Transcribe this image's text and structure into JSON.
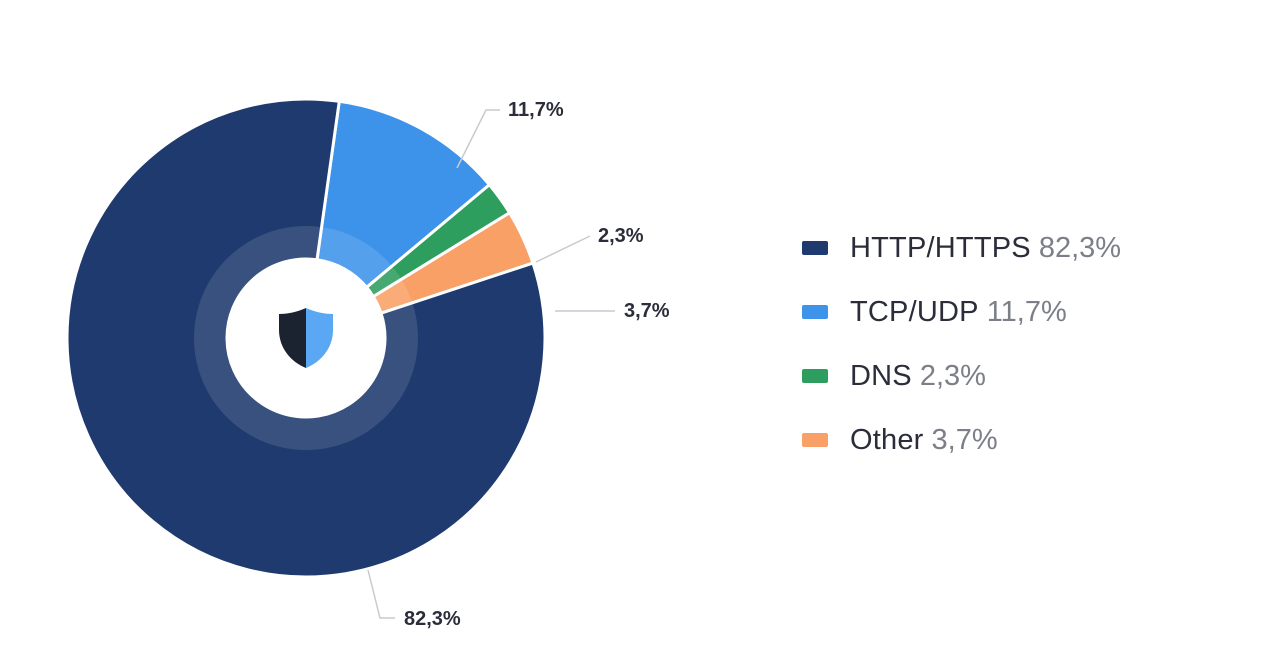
{
  "chart_data": {
    "type": "pie",
    "variant": "donut",
    "center_icon": "shield-icon",
    "categories": [
      "HTTP/HTTPS",
      "TCP/UDP",
      "DNS",
      "Other"
    ],
    "values": [
      82.3,
      11.7,
      2.3,
      3.7
    ],
    "data_labels": [
      "82,3%",
      "11,7%",
      "2,3%",
      "3,7%"
    ],
    "colors": [
      "#1e3a6e",
      "#3d93ea",
      "#2e9e5f",
      "#f9a066"
    ],
    "legend_placement": "right"
  },
  "legend": [
    {
      "name": "HTTP/HTTPS",
      "pct": "82,3%",
      "color": "#1e3a6e"
    },
    {
      "name": "TCP/UDP",
      "pct": "11,7%",
      "color": "#3d93ea"
    },
    {
      "name": "DNS",
      "pct": "2,3%",
      "color": "#2e9e5f"
    },
    {
      "name": "Other",
      "pct": "3,7%",
      "color": "#f9a066"
    }
  ]
}
